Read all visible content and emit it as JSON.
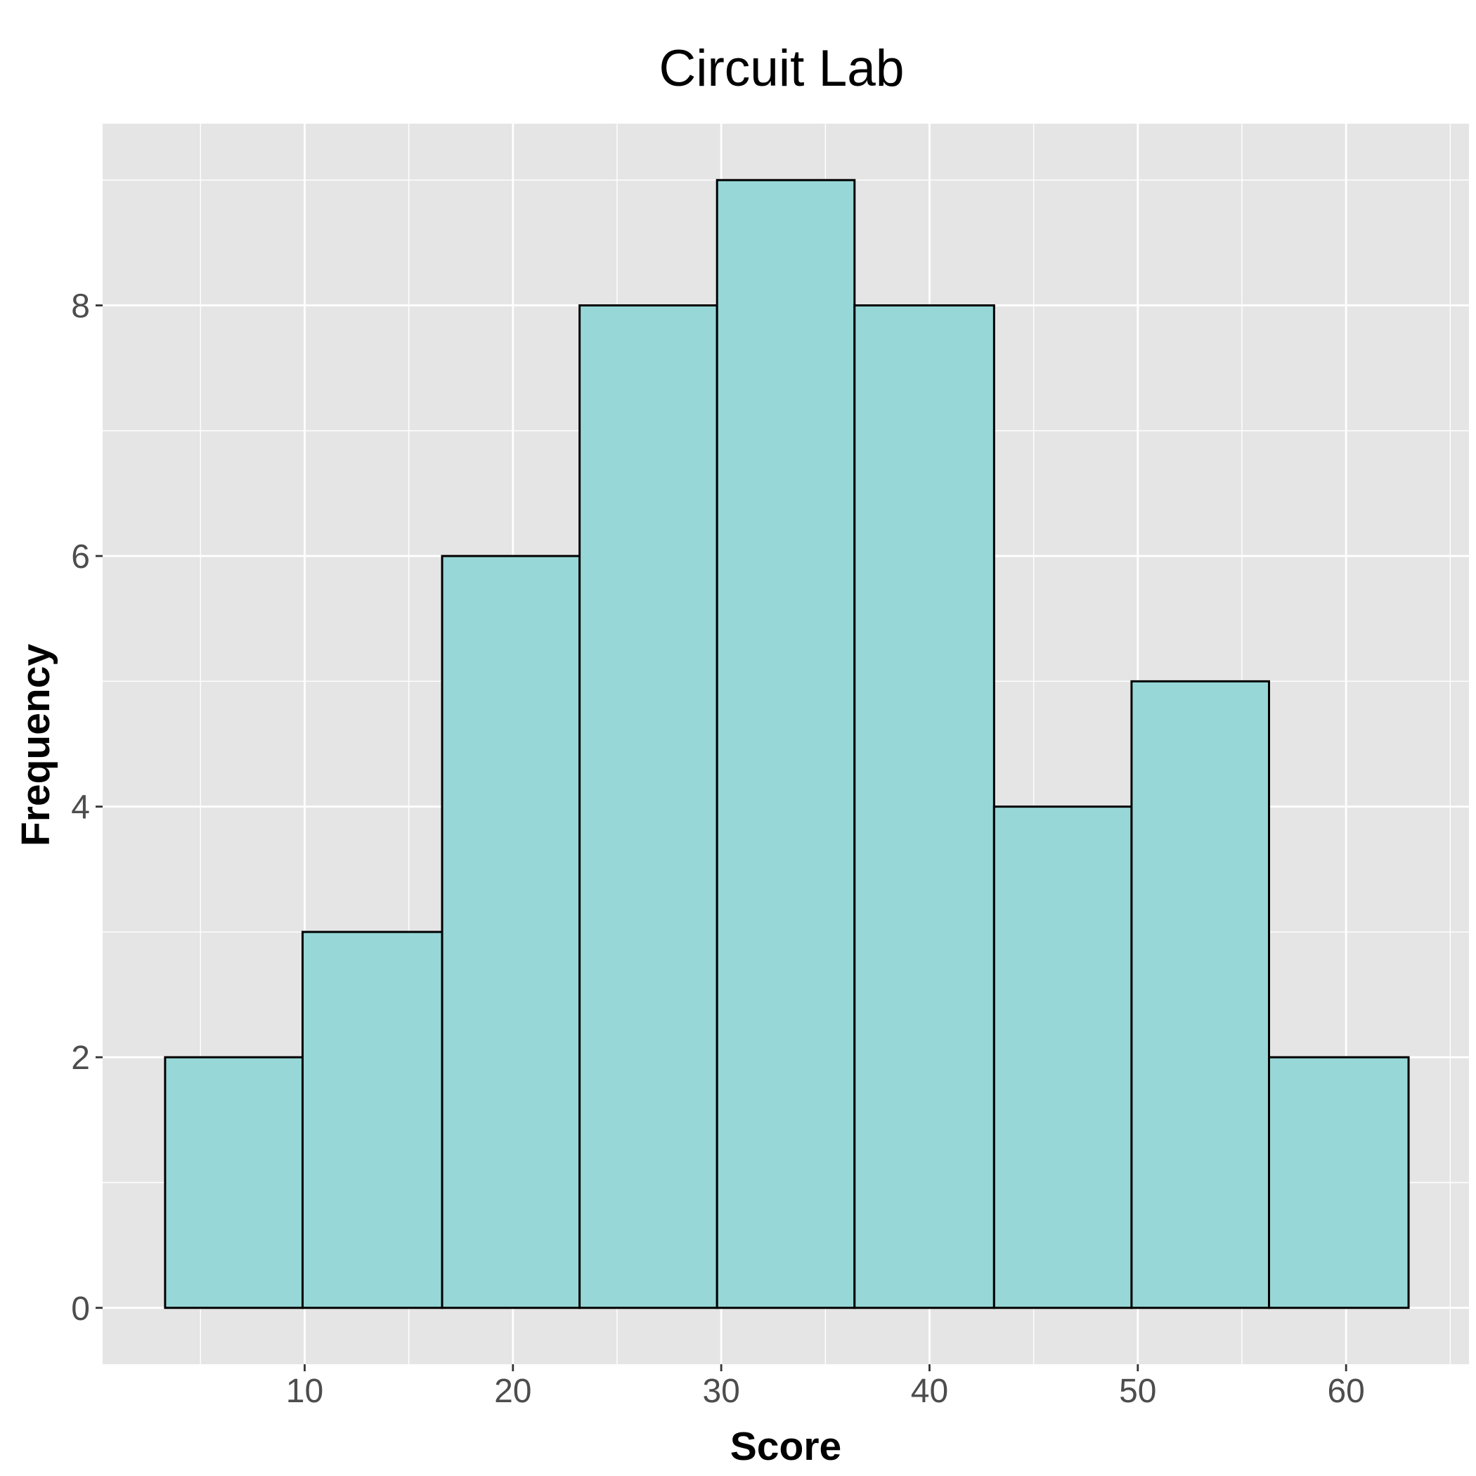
{
  "chart_data": {
    "type": "bar",
    "subtype": "histogram",
    "title": "Circuit Lab",
    "xlabel": "Score",
    "ylabel": "Frequency",
    "bins": [
      {
        "x0": 3.3,
        "x1": 9.9,
        "count": 2
      },
      {
        "x0": 9.9,
        "x1": 16.6,
        "count": 3
      },
      {
        "x0": 16.6,
        "x1": 23.2,
        "count": 6
      },
      {
        "x0": 23.2,
        "x1": 29.8,
        "count": 8
      },
      {
        "x0": 29.8,
        "x1": 36.4,
        "count": 9
      },
      {
        "x0": 36.4,
        "x1": 43.1,
        "count": 8
      },
      {
        "x0": 43.1,
        "x1": 49.7,
        "count": 4
      },
      {
        "x0": 49.7,
        "x1": 56.3,
        "count": 5
      },
      {
        "x0": 56.3,
        "x1": 63.0,
        "count": 2
      }
    ],
    "xlim": [
      0.3,
      65.9
    ],
    "ylim": [
      -0.45,
      9.45
    ],
    "xticks": [
      10,
      20,
      30,
      40,
      50,
      60
    ],
    "yticks": [
      0,
      2,
      4,
      6,
      8
    ],
    "grid": true,
    "colors": {
      "bar_fill": "#97d7d7",
      "bar_stroke": "#000000",
      "panel": "#e5e5e5",
      "grid": "#ffffff"
    }
  }
}
